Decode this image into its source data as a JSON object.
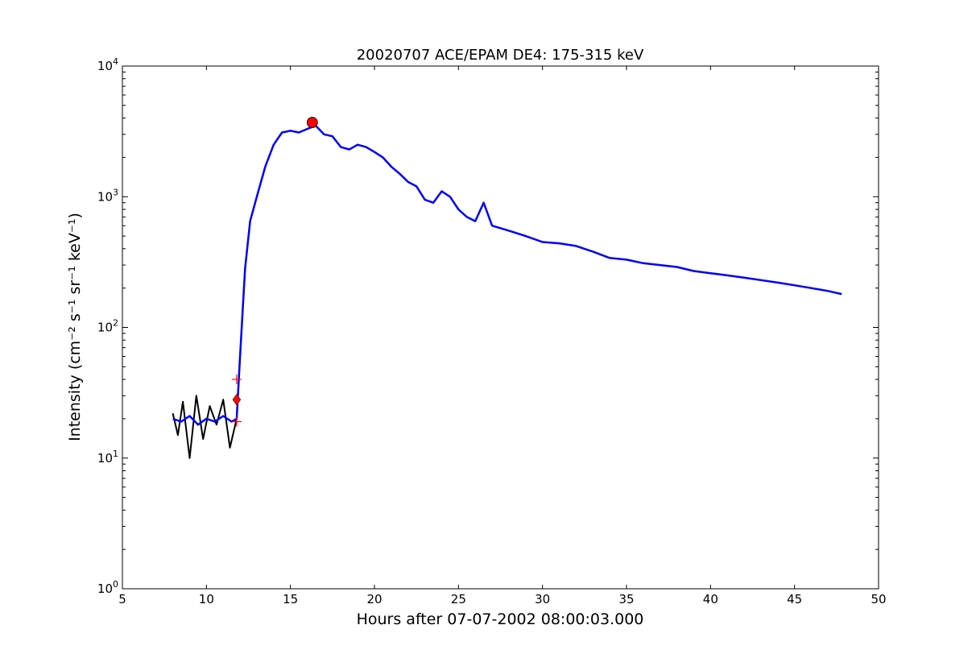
{
  "chart_data": {
    "type": "line",
    "title": "20020707 ACE/EPAM DE4: 175-315 keV",
    "xlabel": "Hours after 07-07-2002 08:00:03.000",
    "ylabel": "Intensity (cm⁻² s⁻¹ sr⁻¹ keV⁻¹)",
    "xlim": [
      5,
      50
    ],
    "ylim": [
      1,
      10000
    ],
    "yscale": "log",
    "grid": false,
    "x_ticks": [
      5,
      10,
      15,
      20,
      25,
      30,
      35,
      40,
      45,
      50
    ],
    "y_ticks": [
      {
        "value": 1,
        "base": "10",
        "exp": "0"
      },
      {
        "value": 10,
        "base": "10",
        "exp": "1"
      },
      {
        "value": 100,
        "base": "10",
        "exp": "2"
      },
      {
        "value": 1000,
        "base": "10",
        "exp": "3"
      },
      {
        "value": 10000,
        "base": "10",
        "exp": "4"
      }
    ],
    "series": [
      {
        "role": "raw",
        "color": "#000000",
        "x": [
          8.0,
          8.3,
          8.6,
          9.0,
          9.4,
          9.8,
          10.2,
          10.6,
          11.0,
          11.4,
          11.8,
          12.0,
          12.3,
          12.6,
          13.0,
          13.5,
          14.0,
          14.5,
          15.0,
          15.5,
          16.0,
          16.5,
          17.0,
          17.5,
          18.0,
          18.5,
          19.0,
          19.5,
          20.0,
          20.5,
          21.0,
          21.5,
          22.0,
          22.5,
          23.0,
          23.5,
          24.0,
          24.5,
          25.0,
          25.5,
          26.0,
          26.5,
          27.0,
          28.0,
          29.0,
          30.0,
          31.0,
          32.0,
          33.0,
          34.0,
          35.0,
          36.0,
          37.0,
          38.0,
          39.0,
          40.0,
          41.0,
          42.0,
          43.0,
          44.0,
          45.0,
          46.0,
          47.0,
          47.8
        ],
        "y": [
          22,
          15,
          27,
          10,
          30,
          14,
          25,
          18,
          28,
          12,
          20,
          60,
          280,
          650,
          1000,
          1700,
          2500,
          3100,
          3200,
          3100,
          3300,
          3500,
          3000,
          2900,
          2400,
          2300,
          2500,
          2400,
          2200,
          2000,
          1700,
          1500,
          1300,
          1200,
          950,
          900,
          1100,
          1000,
          800,
          700,
          650,
          900,
          600,
          550,
          500,
          450,
          440,
          420,
          380,
          340,
          330,
          310,
          300,
          290,
          270,
          260,
          250,
          240,
          230,
          220,
          210,
          200,
          190,
          180
        ]
      },
      {
        "role": "smoothed",
        "color": "#0000ff",
        "x": [
          8.0,
          8.5,
          9.0,
          9.5,
          10.0,
          10.5,
          11.0,
          11.5,
          11.8,
          12.0,
          12.3,
          12.6,
          13.0,
          13.5,
          14.0,
          14.5,
          15.0,
          15.5,
          16.0,
          16.5,
          17.0,
          17.5,
          18.0,
          18.5,
          19.0,
          19.5,
          20.0,
          20.5,
          21.0,
          21.5,
          22.0,
          22.5,
          23.0,
          23.5,
          24.0,
          24.5,
          25.0,
          25.5,
          26.0,
          26.5,
          27.0,
          28.0,
          29.0,
          30.0,
          31.0,
          32.0,
          33.0,
          34.0,
          35.0,
          36.0,
          37.0,
          38.0,
          39.0,
          40.0,
          41.0,
          42.0,
          43.0,
          44.0,
          45.0,
          46.0,
          47.0,
          47.8
        ],
        "y": [
          20,
          19,
          21,
          18,
          20,
          19,
          21,
          19,
          20,
          60,
          280,
          650,
          1000,
          1700,
          2500,
          3100,
          3200,
          3100,
          3300,
          3500,
          3000,
          2900,
          2400,
          2300,
          2500,
          2400,
          2200,
          2000,
          1700,
          1500,
          1300,
          1200,
          950,
          900,
          1100,
          1000,
          800,
          700,
          650,
          900,
          600,
          550,
          500,
          450,
          440,
          420,
          380,
          340,
          330,
          310,
          300,
          290,
          270,
          260,
          250,
          240,
          230,
          220,
          210,
          200,
          190,
          180
        ]
      }
    ],
    "markers": [
      {
        "kind": "circle",
        "color": "#ff0000",
        "x": 16.3,
        "y": 3700
      },
      {
        "kind": "diamond",
        "color": "#ff0000",
        "x": 11.8,
        "y": 28
      },
      {
        "kind": "plus",
        "color": "#ff0000",
        "x": 11.8,
        "y": 40
      },
      {
        "kind": "plus",
        "color": "#ff0000",
        "x": 11.8,
        "y": 19
      }
    ]
  }
}
